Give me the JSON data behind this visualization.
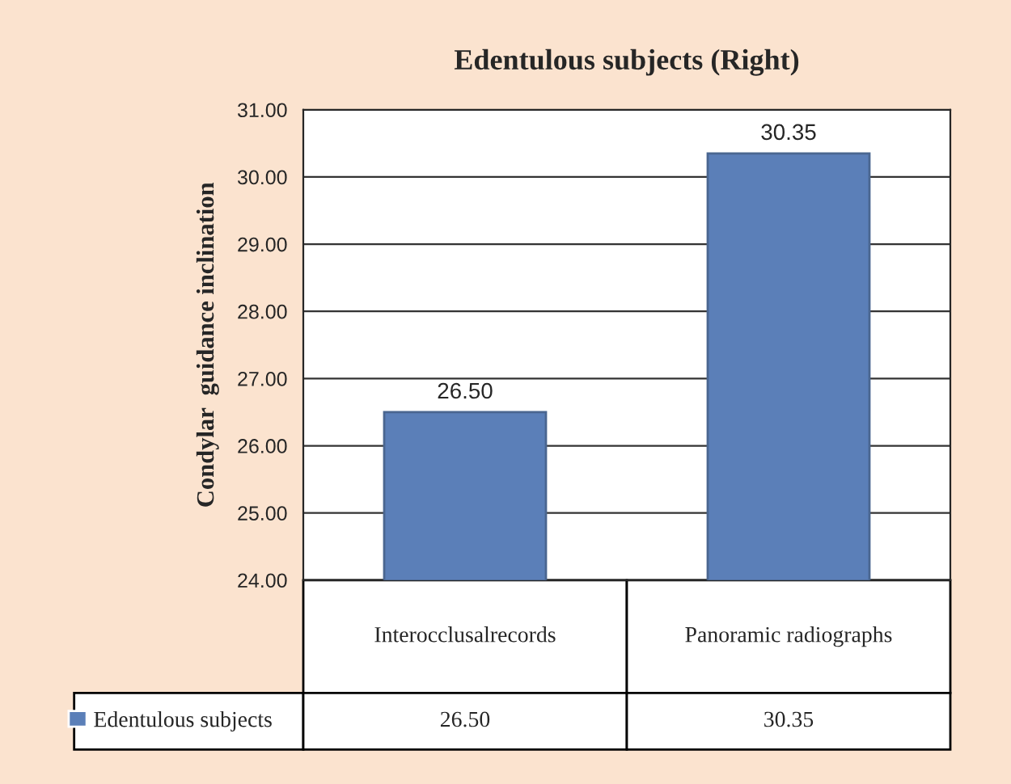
{
  "chart_data": {
    "type": "bar",
    "title": "Edentulous subjects (Right)",
    "ylabel": "Condylar  guidance inclination",
    "categories": [
      "Interocclusalrecords",
      "Panoramic radiographs"
    ],
    "series": [
      {
        "name": "Edentulous subjects",
        "color": "#5b7fb8",
        "values": [
          26.5,
          30.35
        ],
        "value_labels": [
          "26.50",
          "30.35"
        ]
      }
    ],
    "ylim": [
      24,
      31
    ],
    "yticks": [
      {
        "value": 24,
        "label": "24.00"
      },
      {
        "value": 25,
        "label": "25.00"
      },
      {
        "value": 26,
        "label": "26.00"
      },
      {
        "value": 27,
        "label": "27.00"
      },
      {
        "value": 28,
        "label": "28.00"
      },
      {
        "value": 29,
        "label": "29.00"
      },
      {
        "value": 30,
        "label": "30.00"
      },
      {
        "value": 31,
        "label": "31.00"
      }
    ],
    "grid": "y",
    "legend": "bottom"
  }
}
